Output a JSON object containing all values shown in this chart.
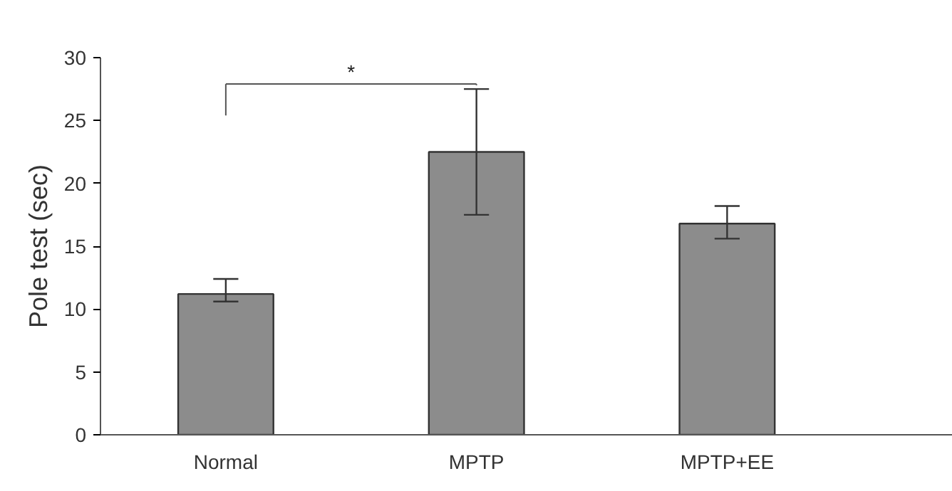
{
  "chart_data": {
    "type": "bar",
    "ylabel": "Pole test (sec)",
    "categories": [
      "Normal",
      "MPTP",
      "MPTP+EE"
    ],
    "values": [
      11.2,
      22.5,
      16.8
    ],
    "errors": [
      [
        10.6,
        12.4
      ],
      [
        17.5,
        27.5
      ],
      [
        15.6,
        18.2
      ]
    ],
    "color": "#8c8c8c",
    "ylim": [
      0,
      30
    ],
    "yticks": [
      0,
      5,
      10,
      15,
      20,
      25,
      30
    ],
    "grid": false,
    "annotations": [
      "*"
    ]
  }
}
